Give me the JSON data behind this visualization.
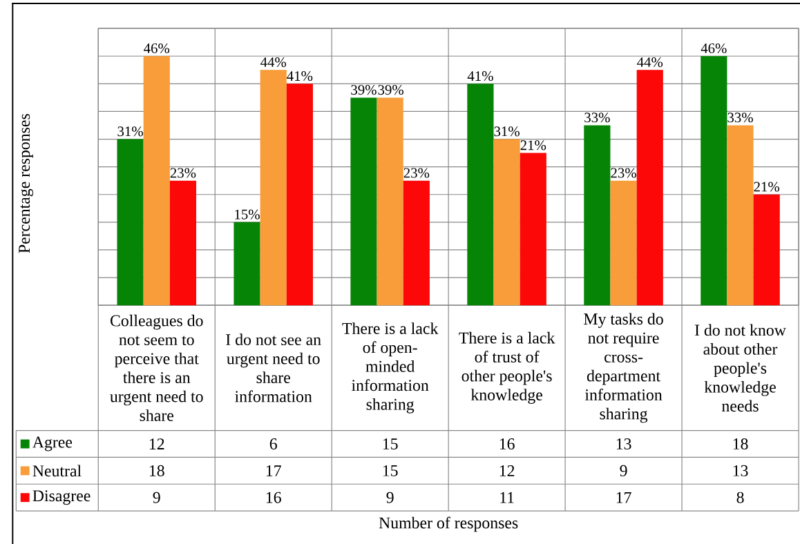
{
  "chart_data": {
    "type": "bar",
    "ylabel": "Percentage responses",
    "categories": [
      "Colleagues do not seem to perceive that there is an urgent need to share",
      "I do not see an urgent need to share information",
      "There is a lack of open-minded information sharing",
      "There is a lack of trust of other people's knowledge",
      "My tasks do not require cross-department information sharing",
      "I do not know about other people's knowledge needs"
    ],
    "series": [
      {
        "name": "Agree",
        "color": "#068406",
        "values": [
          12,
          6,
          15,
          16,
          13,
          18
        ]
      },
      {
        "name": "Neutral",
        "color": "#f89d39",
        "values": [
          18,
          17,
          15,
          12,
          9,
          13
        ]
      },
      {
        "name": "Disagree",
        "color": "#fc0808",
        "values": [
          9,
          16,
          9,
          11,
          17,
          8
        ]
      }
    ],
    "ylim": [
      0,
      20
    ],
    "yticks": [
      {
        "value": 0,
        "label": null
      },
      {
        "value": 2,
        "label": null
      },
      {
        "value": 4,
        "label": null
      },
      {
        "value": 6,
        "label": null
      },
      {
        "value": 8,
        "label": null
      },
      {
        "value": 10,
        "label": null
      },
      {
        "value": 12,
        "label": null
      },
      {
        "value": 14,
        "label": null
      },
      {
        "value": 16,
        "label": null
      },
      {
        "value": 18,
        "label": null
      },
      {
        "value": 20,
        "label": null
      }
    ],
    "annotations": [
      "31%",
      "46%",
      "23%",
      "15%",
      "44%",
      "41%",
      "39%",
      "39%",
      "23%",
      "41%",
      "31%",
      "21%",
      "33%",
      "23%",
      "44%",
      "46%",
      "33%",
      "21%",
      "Number of responses"
    ],
    "tick_labels": "x",
    "grid": true,
    "legend": "bottom left",
    "data_labels": true
  }
}
